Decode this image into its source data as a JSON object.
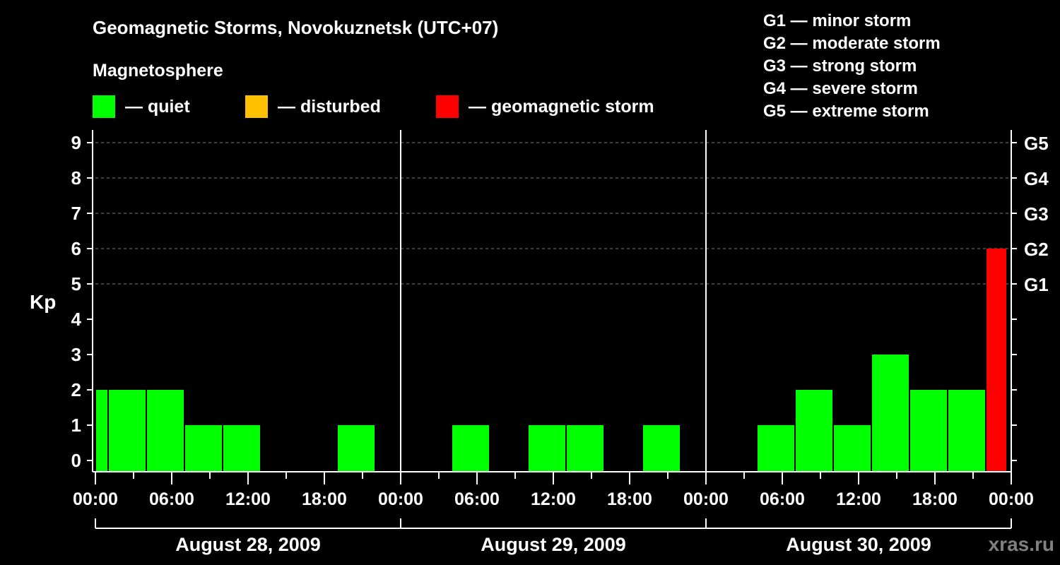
{
  "header": {
    "title": "Geomagnetic Storms, Novokuznetsk (UTC+07)",
    "subtitle": "Magnetosphere"
  },
  "legend": [
    {
      "label": "— quiet",
      "color": "#00ff00"
    },
    {
      "label": "— disturbed",
      "color": "#ffc000"
    },
    {
      "label": "— geomagnetic storm",
      "color": "#ff0000"
    }
  ],
  "storm_scale": [
    "G1 — minor storm",
    "G2 — moderate storm",
    "G3 — strong storm",
    "G4 — severe storm",
    "G5 — extreme storm"
  ],
  "watermark": "xras.ru",
  "chart_data": {
    "type": "bar",
    "title": "Geomagnetic Storms, Novokuznetsk (UTC+07)",
    "xlabel": "",
    "ylabel": "Kp",
    "ylim": [
      0,
      9
    ],
    "yticks": [
      0,
      1,
      2,
      3,
      4,
      5,
      6,
      7,
      8,
      9
    ],
    "right_axis_labels": [
      {
        "kp": 5,
        "label": "G1"
      },
      {
        "kp": 6,
        "label": "G2"
      },
      {
        "kp": 7,
        "label": "G3"
      },
      {
        "kp": 8,
        "label": "G4"
      },
      {
        "kp": 9,
        "label": "G5"
      }
    ],
    "grid": "dashed horizontal lines at Kp 5-9",
    "xtick_labels": [
      "00:00",
      "06:00",
      "12:00",
      "18:00",
      "00:00",
      "06:00",
      "12:00",
      "18:00",
      "00:00",
      "06:00",
      "12:00",
      "18:00",
      "00:00"
    ],
    "days": [
      "August 28, 2009",
      "August 29, 2009",
      "August 30, 2009"
    ],
    "bars": [
      {
        "day": "August 28, 2009",
        "start": "00:00",
        "end": "01:00",
        "kp": 2,
        "status": "quiet"
      },
      {
        "day": "August 28, 2009",
        "start": "01:00",
        "end": "04:00",
        "kp": 2,
        "status": "quiet"
      },
      {
        "day": "August 28, 2009",
        "start": "04:00",
        "end": "07:00",
        "kp": 2,
        "status": "quiet"
      },
      {
        "day": "August 28, 2009",
        "start": "07:00",
        "end": "10:00",
        "kp": 1,
        "status": "quiet"
      },
      {
        "day": "August 28, 2009",
        "start": "10:00",
        "end": "13:00",
        "kp": 1,
        "status": "quiet"
      },
      {
        "day": "August 28, 2009",
        "start": "13:00",
        "end": "16:00",
        "kp": 0,
        "status": "quiet"
      },
      {
        "day": "August 28, 2009",
        "start": "16:00",
        "end": "19:00",
        "kp": 0,
        "status": "quiet"
      },
      {
        "day": "August 28, 2009",
        "start": "19:00",
        "end": "22:00",
        "kp": 1,
        "status": "quiet"
      },
      {
        "day": "August 28, 2009",
        "start": "22:00",
        "end": "01:00",
        "kp": 0,
        "status": "quiet"
      },
      {
        "day": "August 29, 2009",
        "start": "01:00",
        "end": "04:00",
        "kp": 0,
        "status": "quiet"
      },
      {
        "day": "August 29, 2009",
        "start": "04:00",
        "end": "07:00",
        "kp": 1,
        "status": "quiet"
      },
      {
        "day": "August 29, 2009",
        "start": "07:00",
        "end": "10:00",
        "kp": 0,
        "status": "quiet"
      },
      {
        "day": "August 29, 2009",
        "start": "10:00",
        "end": "13:00",
        "kp": 1,
        "status": "quiet"
      },
      {
        "day": "August 29, 2009",
        "start": "13:00",
        "end": "16:00",
        "kp": 1,
        "status": "quiet"
      },
      {
        "day": "August 29, 2009",
        "start": "16:00",
        "end": "19:00",
        "kp": 0,
        "status": "quiet"
      },
      {
        "day": "August 29, 2009",
        "start": "19:00",
        "end": "22:00",
        "kp": 1,
        "status": "quiet"
      },
      {
        "day": "August 29, 2009",
        "start": "22:00",
        "end": "01:00",
        "kp": 0,
        "status": "quiet"
      },
      {
        "day": "August 30, 2009",
        "start": "01:00",
        "end": "04:00",
        "kp": 0,
        "status": "quiet"
      },
      {
        "day": "August 30, 2009",
        "start": "04:00",
        "end": "07:00",
        "kp": 1,
        "status": "quiet"
      },
      {
        "day": "August 30, 2009",
        "start": "07:00",
        "end": "10:00",
        "kp": 2,
        "status": "quiet"
      },
      {
        "day": "August 30, 2009",
        "start": "10:00",
        "end": "13:00",
        "kp": 1,
        "status": "quiet"
      },
      {
        "day": "August 30, 2009",
        "start": "13:00",
        "end": "16:00",
        "kp": 3,
        "status": "quiet"
      },
      {
        "day": "August 30, 2009",
        "start": "16:00",
        "end": "19:00",
        "kp": 2,
        "status": "quiet"
      },
      {
        "day": "August 30, 2009",
        "start": "19:00",
        "end": "22:00",
        "kp": 2,
        "status": "quiet"
      },
      {
        "day": "August 30, 2009",
        "start": "22:00",
        "end": "23:40",
        "kp": 6,
        "status": "geomagnetic storm"
      }
    ],
    "colors": {
      "quiet": "#00ff00",
      "disturbed": "#ffc000",
      "geomagnetic storm": "#ff0000"
    }
  }
}
